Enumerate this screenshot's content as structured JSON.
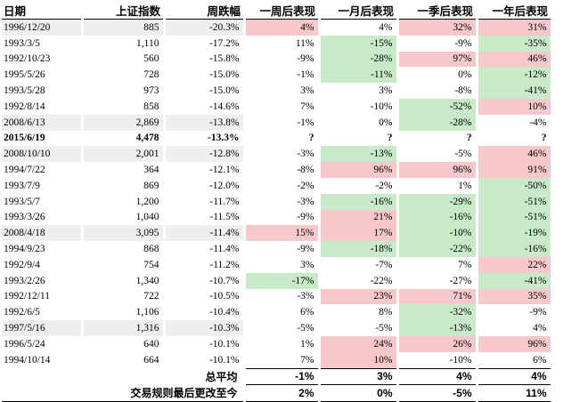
{
  "headers": [
    "日期",
    "上证指数",
    "周跌幅",
    "一周后表现",
    "一月后表现",
    "一季后表现",
    "一年后表现"
  ],
  "rows": [
    {
      "date": "1996/12/20",
      "index": "885",
      "drop": "-20.3%",
      "w": "4%",
      "m": "4%",
      "q": "32%",
      "y": "31%",
      "grey": true,
      "bold": false
    },
    {
      "date": "1993/3/5",
      "index": "1,110",
      "drop": "-17.2%",
      "w": "11%",
      "m": "-15%",
      "q": "-9%",
      "y": "-35%",
      "grey": false,
      "bold": false
    },
    {
      "date": "1992/10/23",
      "index": "560",
      "drop": "-15.8%",
      "w": "-9%",
      "m": "-28%",
      "q": "97%",
      "y": "46%",
      "grey": false,
      "bold": false
    },
    {
      "date": "1995/5/26",
      "index": "728",
      "drop": "-15.0%",
      "w": "-1%",
      "m": "-11%",
      "q": "0%",
      "y": "-12%",
      "grey": false,
      "bold": false
    },
    {
      "date": "1993/5/28",
      "index": "973",
      "drop": "-15.0%",
      "w": "3%",
      "m": "3%",
      "q": "-8%",
      "y": "-41%",
      "grey": false,
      "bold": false
    },
    {
      "date": "1992/8/14",
      "index": "858",
      "drop": "-14.6%",
      "w": "7%",
      "m": "-10%",
      "q": "-52%",
      "y": "10%",
      "grey": false,
      "bold": false
    },
    {
      "date": "2008/6/13",
      "index": "2,869",
      "drop": "-13.8%",
      "w": "-1%",
      "m": "0%",
      "q": "-28%",
      "y": "-4%",
      "grey": true,
      "bold": false
    },
    {
      "date": "2015/6/19",
      "index": "4,478",
      "drop": "-13.3%",
      "w": "?",
      "m": "?",
      "q": "?",
      "y": "?",
      "grey": false,
      "bold": true
    },
    {
      "date": "2008/10/10",
      "index": "2,001",
      "drop": "-12.8%",
      "w": "-3%",
      "m": "-13%",
      "q": "-5%",
      "y": "46%",
      "grey": true,
      "bold": false
    },
    {
      "date": "1994/7/22",
      "index": "364",
      "drop": "-12.1%",
      "w": "-8%",
      "m": "96%",
      "q": "96%",
      "y": "91%",
      "grey": false,
      "bold": false
    },
    {
      "date": "1993/7/9",
      "index": "869",
      "drop": "-12.0%",
      "w": "-2%",
      "m": "-2%",
      "q": "1%",
      "y": "-50%",
      "grey": false,
      "bold": false
    },
    {
      "date": "1993/5/7",
      "index": "1,200",
      "drop": "-11.7%",
      "w": "-3%",
      "m": "-16%",
      "q": "-29%",
      "y": "-51%",
      "grey": false,
      "bold": false
    },
    {
      "date": "1993/3/26",
      "index": "1,040",
      "drop": "-11.5%",
      "w": "-9%",
      "m": "21%",
      "q": "-16%",
      "y": "-51%",
      "grey": false,
      "bold": false
    },
    {
      "date": "2008/4/18",
      "index": "3,095",
      "drop": "-11.4%",
      "w": "15%",
      "m": "17%",
      "q": "-10%",
      "y": "-19%",
      "grey": true,
      "bold": false
    },
    {
      "date": "1994/9/23",
      "index": "868",
      "drop": "-11.4%",
      "w": "-9%",
      "m": "-18%",
      "q": "-22%",
      "y": "-16%",
      "grey": false,
      "bold": false
    },
    {
      "date": "1992/9/4",
      "index": "754",
      "drop": "-11.2%",
      "w": "3%",
      "m": "-7%",
      "q": "7%",
      "y": "22%",
      "grey": false,
      "bold": false
    },
    {
      "date": "1993/2/26",
      "index": "1,340",
      "drop": "-10.7%",
      "w": "-17%",
      "m": "-22%",
      "q": "-27%",
      "y": "-41%",
      "grey": false,
      "bold": false
    },
    {
      "date": "1992/12/11",
      "index": "722",
      "drop": "-10.5%",
      "w": "-3%",
      "m": "23%",
      "q": "71%",
      "y": "35%",
      "grey": false,
      "bold": false
    },
    {
      "date": "1992/6/5",
      "index": "1,106",
      "drop": "-10.4%",
      "w": "6%",
      "m": "8%",
      "q": "-32%",
      "y": "-9%",
      "grey": false,
      "bold": false
    },
    {
      "date": "1997/5/16",
      "index": "1,316",
      "drop": "-10.3%",
      "w": "-5%",
      "m": "-5%",
      "q": "-13%",
      "y": "4%",
      "grey": true,
      "bold": false
    },
    {
      "date": "1996/5/24",
      "index": "640",
      "drop": "-10.1%",
      "w": "1%",
      "m": "24%",
      "q": "26%",
      "y": "96%",
      "grey": false,
      "bold": false
    },
    {
      "date": "1994/10/14",
      "index": "664",
      "drop": "-10.1%",
      "w": "7%",
      "m": "10%",
      "q": "-10%",
      "y": "6%",
      "grey": false,
      "bold": false
    }
  ],
  "highlight": {
    "w": [
      "pos",
      "",
      "",
      "",
      "",
      "",
      "",
      "",
      "",
      "",
      "",
      "",
      "",
      "pos",
      "",
      "",
      "neg",
      "",
      "",
      "",
      "",
      ""
    ],
    "m": [
      "",
      "neg",
      "neg",
      "neg",
      "",
      "",
      "",
      "",
      "neg",
      "pos",
      "",
      "neg",
      "pos",
      "pos",
      "neg",
      "",
      "",
      "pos",
      "",
      "",
      "pos",
      "pos"
    ],
    "q": [
      "pos",
      "",
      "pos",
      "",
      "",
      "neg",
      "neg",
      "",
      "",
      "pos",
      "",
      "neg",
      "neg",
      "neg",
      "neg",
      "",
      "",
      "pos",
      "neg",
      "neg",
      "pos",
      ""
    ],
    "y": [
      "pos",
      "neg",
      "pos",
      "neg",
      "neg",
      "pos",
      "",
      "",
      "pos",
      "pos",
      "neg",
      "neg",
      "neg",
      "neg",
      "neg",
      "pos",
      "neg",
      "pos",
      "",
      "",
      "pos",
      ""
    ]
  },
  "summary": [
    {
      "label": "总平均",
      "w": "-1%",
      "m": "3%",
      "q": "4%",
      "y": "4%"
    },
    {
      "label": "交易规则最后更改至今",
      "w": "2%",
      "m": "0%",
      "q": "-5%",
      "y": "11%"
    }
  ]
}
